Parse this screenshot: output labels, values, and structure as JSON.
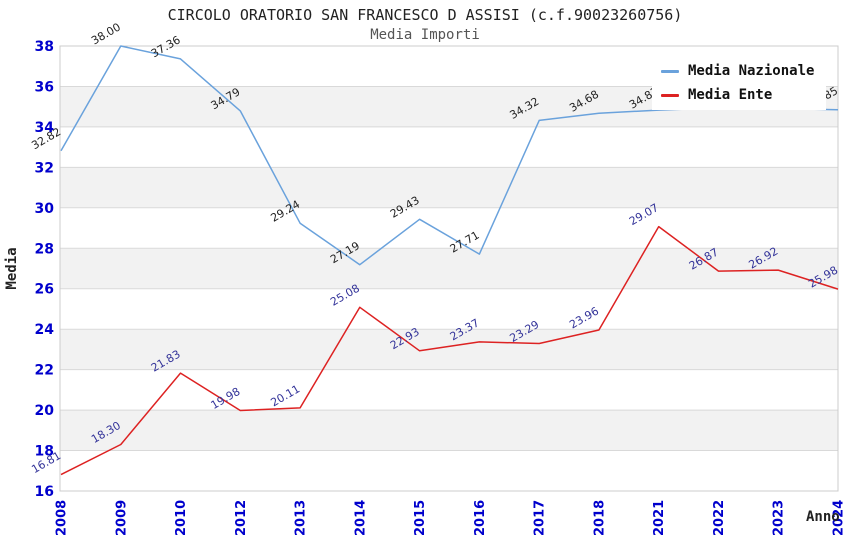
{
  "chart_data": {
    "type": "line",
    "title": "CIRCOLO ORATORIO SAN FRANCESCO D ASSISI (c.f.90023260756)",
    "subtitle": "Media Importi",
    "x_label": "Anno",
    "y_label": "Media",
    "categories": [
      "2008",
      "2009",
      "2010",
      "2012",
      "2013",
      "2014",
      "2015",
      "2016",
      "2017",
      "2018",
      "2021",
      "2022",
      "2023",
      "2024"
    ],
    "ylim": [
      16,
      38
    ],
    "y_tick_step": 2,
    "grid": "horizontal gridlines every 2 units with alternating shaded bands",
    "legend_position": "top-right inside plot, white box",
    "series": [
      {
        "name": "Media Nazionale",
        "color": "#6aa2dc",
        "label_color": "#222222",
        "values": [
          32.82,
          38.0,
          37.36,
          34.79,
          29.24,
          27.19,
          29.43,
          27.71,
          34.32,
          34.68,
          34.83,
          34.94,
          34.91,
          34.85
        ],
        "hidden_label_indices": [
          11,
          12
        ]
      },
      {
        "name": "Media Ente",
        "color": "#dd2222",
        "label_color": "#333399",
        "values": [
          16.81,
          18.3,
          21.83,
          19.98,
          20.11,
          25.08,
          22.93,
          23.37,
          23.29,
          23.96,
          29.07,
          26.87,
          26.92,
          25.98
        ]
      }
    ],
    "colors": {
      "axis_tick_labels": "#0000cc",
      "band_fill": "#f2f2f2",
      "gridline": "#d9d9d9",
      "plot_border": "#cccccc",
      "title": "#222222",
      "subtitle": "#555555"
    }
  }
}
